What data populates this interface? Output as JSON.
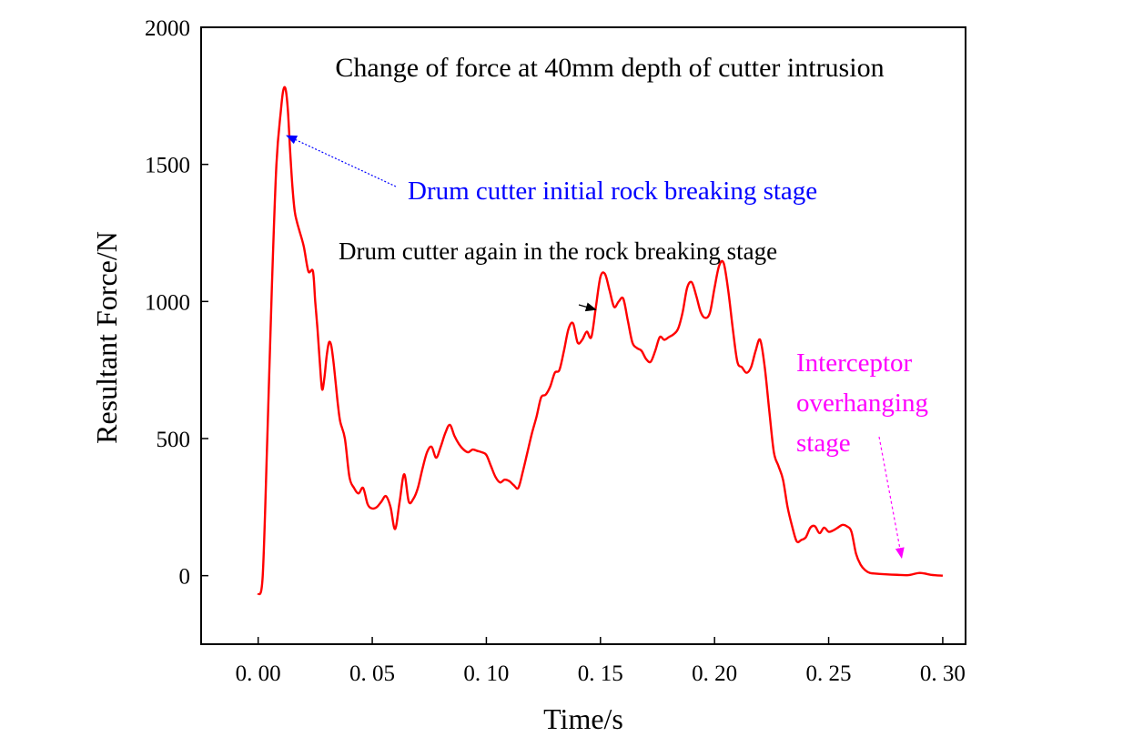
{
  "chart_data": {
    "type": "line",
    "title": "Change of force at 40mm depth of cutter intrusion",
    "xlabel": "Time/s",
    "ylabel": "Resultant Force/N",
    "xlim": [
      -0.025,
      0.31
    ],
    "ylim": [
      -250,
      2000
    ],
    "x_ticks": [
      0.0,
      0.05,
      0.1,
      0.15,
      0.2,
      0.25,
      0.3
    ],
    "x_tick_labels": [
      "0. 00",
      "0. 05",
      "0. 10",
      "0. 15",
      "0. 20",
      "0. 25",
      "0. 30"
    ],
    "y_ticks": [
      0,
      500,
      1000,
      1500,
      2000
    ],
    "y_tick_labels": [
      "0",
      "500",
      "1000",
      "1500",
      "2000"
    ],
    "grid": false,
    "series": [
      {
        "name": "Resultant Force",
        "color": "#ff0000",
        "x": [
          0.0,
          0.002,
          0.004,
          0.006,
          0.008,
          0.01,
          0.011,
          0.012,
          0.013,
          0.014,
          0.015,
          0.016,
          0.017,
          0.018,
          0.02,
          0.022,
          0.024,
          0.025,
          0.026,
          0.027,
          0.028,
          0.029,
          0.03,
          0.031,
          0.032,
          0.033,
          0.034,
          0.035,
          0.036,
          0.038,
          0.04,
          0.042,
          0.044,
          0.046,
          0.048,
          0.05,
          0.052,
          0.054,
          0.056,
          0.058,
          0.06,
          0.062,
          0.064,
          0.066,
          0.068,
          0.07,
          0.072,
          0.074,
          0.076,
          0.078,
          0.08,
          0.082,
          0.084,
          0.086,
          0.088,
          0.09,
          0.092,
          0.094,
          0.096,
          0.098,
          0.1,
          0.102,
          0.104,
          0.106,
          0.108,
          0.11,
          0.112,
          0.114,
          0.116,
          0.118,
          0.12,
          0.122,
          0.124,
          0.126,
          0.128,
          0.13,
          0.132,
          0.134,
          0.136,
          0.138,
          0.14,
          0.142,
          0.144,
          0.146,
          0.148,
          0.15,
          0.152,
          0.154,
          0.156,
          0.158,
          0.16,
          0.162,
          0.164,
          0.166,
          0.168,
          0.17,
          0.172,
          0.174,
          0.176,
          0.178,
          0.18,
          0.182,
          0.184,
          0.186,
          0.188,
          0.19,
          0.192,
          0.194,
          0.196,
          0.198,
          0.2,
          0.202,
          0.204,
          0.206,
          0.208,
          0.21,
          0.212,
          0.214,
          0.216,
          0.218,
          0.22,
          0.222,
          0.224,
          0.226,
          0.228,
          0.23,
          0.232,
          0.234,
          0.236,
          0.238,
          0.24,
          0.242,
          0.244,
          0.246,
          0.248,
          0.25,
          0.252,
          0.254,
          0.256,
          0.258,
          0.26,
          0.262,
          0.264,
          0.266,
          0.268,
          0.27,
          0.275,
          0.28,
          0.285,
          0.29,
          0.295,
          0.3
        ],
        "values": [
          -70,
          0,
          500,
          1050,
          1500,
          1700,
          1770,
          1775,
          1700,
          1550,
          1420,
          1330,
          1290,
          1260,
          1200,
          1110,
          1110,
          1000,
          900,
          780,
          680,
          720,
          800,
          850,
          840,
          780,
          700,
          620,
          560,
          500,
          360,
          320,
          300,
          320,
          260,
          245,
          250,
          270,
          290,
          250,
          170,
          270,
          370,
          270,
          280,
          320,
          390,
          450,
          470,
          430,
          470,
          520,
          550,
          510,
          480,
          460,
          450,
          460,
          455,
          450,
          440,
          400,
          360,
          340,
          350,
          345,
          330,
          320,
          380,
          450,
          520,
          580,
          650,
          660,
          690,
          740,
          750,
          820,
          900,
          920,
          850,
          860,
          890,
          870,
          980,
          1090,
          1100,
          1040,
          980,
          1000,
          1010,
          930,
          850,
          830,
          820,
          790,
          780,
          820,
          870,
          860,
          870,
          880,
          900,
          960,
          1050,
          1070,
          1020,
          960,
          940,
          960,
          1050,
          1130,
          1140,
          1040,
          900,
          780,
          760,
          740,
          760,
          820,
          860,
          760,
          600,
          450,
          400,
          350,
          250,
          180,
          125,
          130,
          140,
          175,
          180,
          155,
          175,
          160,
          165,
          175,
          185,
          180,
          160,
          80,
          40,
          20,
          10,
          8,
          5,
          3,
          2,
          10,
          3,
          0
        ]
      }
    ],
    "annotations": [
      {
        "text": "Drum cutter initial rock breaking stage",
        "color": "#0000ff",
        "arrow_to": [
          0.0125,
          1605
        ]
      },
      {
        "text": "Drum cutter again in the rock breaking stage",
        "color": "#000000",
        "arrow_to": [
          0.148,
          970
        ]
      },
      {
        "lines": [
          "Interceptor",
          "overhanging",
          "stage"
        ],
        "color": "#ff00ff",
        "arrow_to": [
          0.282,
          65
        ]
      }
    ]
  }
}
